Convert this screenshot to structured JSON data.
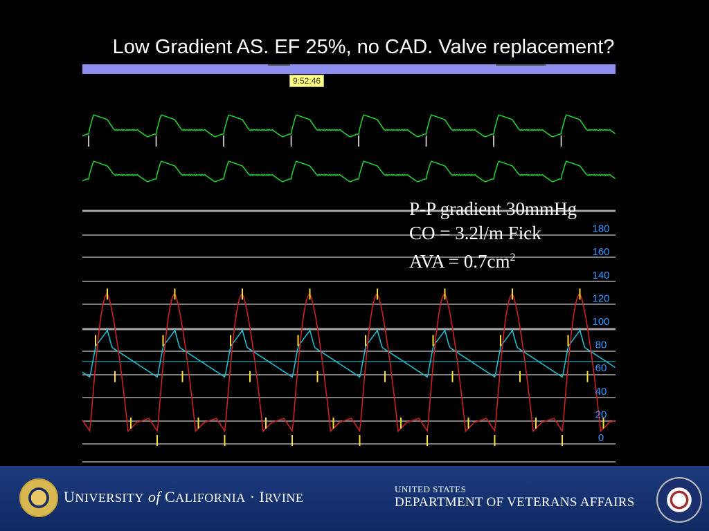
{
  "title": "Low Gradient AS.  EF 25%, no CAD.  Valve replacement?",
  "monitor": {
    "timestamp": "9:52:46",
    "y_tick_labels": [
      "180",
      "160",
      "140",
      "120",
      "100",
      "80",
      "60",
      "40",
      "20",
      "0"
    ],
    "colors": {
      "ecg": "#22cc33",
      "aortic": "#cc2222",
      "lv_overlay": "#22bbcc",
      "scale": "#3399ff",
      "marker": "#ffe033",
      "grid": "#a8a8a8"
    }
  },
  "annotation": {
    "line1": "P-P gradient 30mmHg",
    "line2": "CO = 3.2l/m Fick",
    "line3_base": "AVA = 0.7cm",
    "line3_sup": "2"
  },
  "footer": {
    "uci": {
      "u": "U",
      "niversity": "NIVERSITY",
      "of": "of",
      "c": "C",
      "alifornia": "ALIFORNIA",
      "dot": "·",
      "i": "I",
      "rvine": "RVINE"
    },
    "va_top": "UNITED STATES",
    "va_main": "DEPARTMENT OF VETERANS AFFAIRS"
  }
}
